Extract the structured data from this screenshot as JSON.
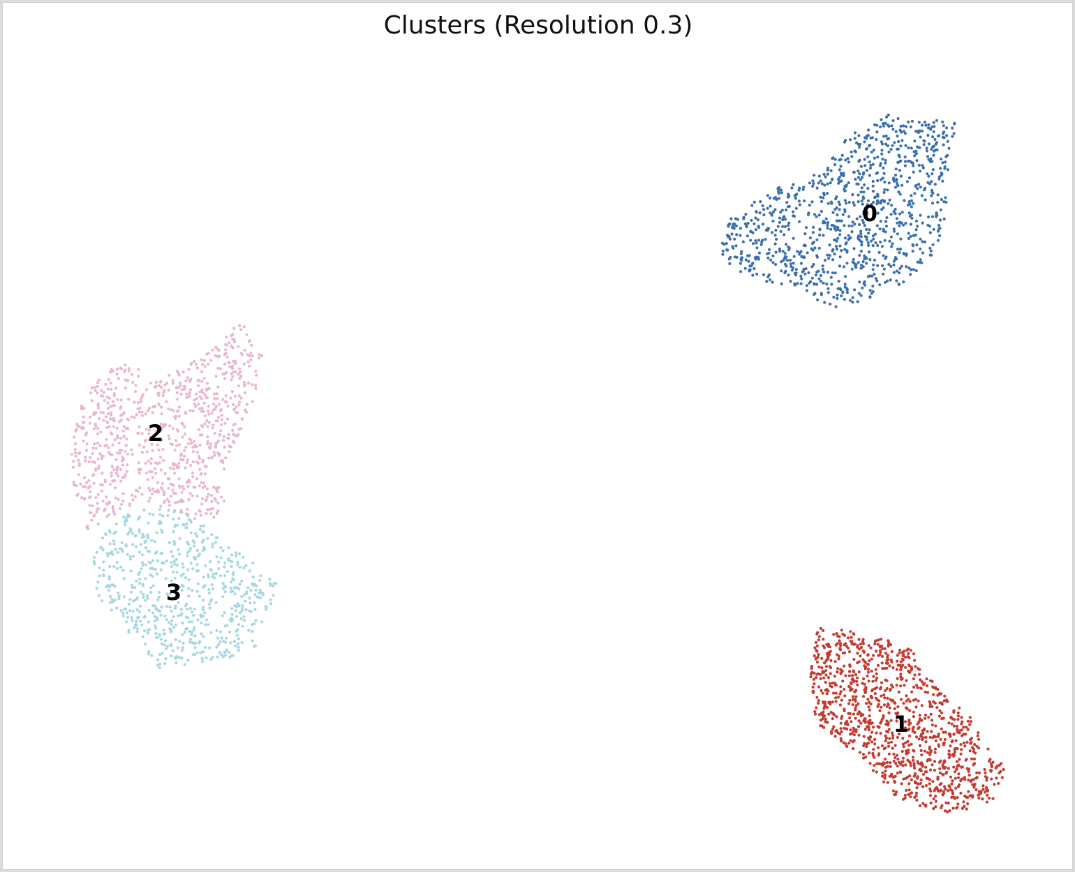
{
  "chart_data": {
    "type": "scatter",
    "title": "Clusters (Resolution 0.3)",
    "xlabel": "",
    "ylabel": "",
    "grid": false,
    "axes_visible": false,
    "legend": "on data",
    "series": [
      {
        "name": "0",
        "color": "#3a6fae",
        "label_at": [
          1245,
          305
        ],
        "outline": [
          [
            1030,
            355
          ],
          [
            1045,
            305
          ],
          [
            1110,
            270
          ],
          [
            1180,
            240
          ],
          [
            1215,
            190
          ],
          [
            1275,
            162
          ],
          [
            1305,
            170
          ],
          [
            1375,
            172
          ],
          [
            1360,
            205
          ],
          [
            1355,
            265
          ],
          [
            1355,
            320
          ],
          [
            1330,
            375
          ],
          [
            1280,
            415
          ],
          [
            1195,
            442
          ],
          [
            1120,
            410
          ],
          [
            1045,
            385
          ]
        ],
        "count": 1000
      },
      {
        "name": "1",
        "color": "#c43a30",
        "label_at": [
          1290,
          1037
        ],
        "outline": [
          [
            1160,
            965
          ],
          [
            1170,
            900
          ],
          [
            1195,
            895
          ],
          [
            1240,
            910
          ],
          [
            1300,
            920
          ],
          [
            1320,
            955
          ],
          [
            1350,
            995
          ],
          [
            1385,
            1020
          ],
          [
            1420,
            1080
          ],
          [
            1440,
            1100
          ],
          [
            1425,
            1145
          ],
          [
            1385,
            1160
          ],
          [
            1340,
            1165
          ],
          [
            1290,
            1150
          ],
          [
            1255,
            1110
          ],
          [
            1230,
            1080
          ],
          [
            1195,
            1060
          ],
          [
            1165,
            1030
          ]
        ],
        "count": 1100
      },
      {
        "name": "2",
        "color": "#e8b6cf",
        "label_at": [
          222,
          620
        ],
        "outline": [
          [
            100,
            630
          ],
          [
            120,
            565
          ],
          [
            150,
            525
          ],
          [
            190,
            518
          ],
          [
            220,
            545
          ],
          [
            255,
            530
          ],
          [
            305,
            495
          ],
          [
            345,
            458
          ],
          [
            375,
            505
          ],
          [
            365,
            565
          ],
          [
            340,
            625
          ],
          [
            315,
            690
          ],
          [
            325,
            740
          ],
          [
            285,
            745
          ],
          [
            240,
            728
          ],
          [
            195,
            718
          ],
          [
            150,
            745
          ],
          [
            125,
            760
          ],
          [
            105,
            700
          ]
        ],
        "count": 850
      },
      {
        "name": "3",
        "color": "#a6d7e0",
        "label_at": [
          248,
          848
        ],
        "outline": [
          [
            130,
            800
          ],
          [
            150,
            760
          ],
          [
            195,
            725
          ],
          [
            255,
            728
          ],
          [
            285,
            748
          ],
          [
            320,
            775
          ],
          [
            360,
            805
          ],
          [
            400,
            840
          ],
          [
            380,
            880
          ],
          [
            365,
            925
          ],
          [
            320,
            945
          ],
          [
            270,
            950
          ],
          [
            230,
            962
          ],
          [
            205,
            930
          ],
          [
            170,
            890
          ],
          [
            140,
            860
          ]
        ],
        "count": 650
      }
    ]
  }
}
